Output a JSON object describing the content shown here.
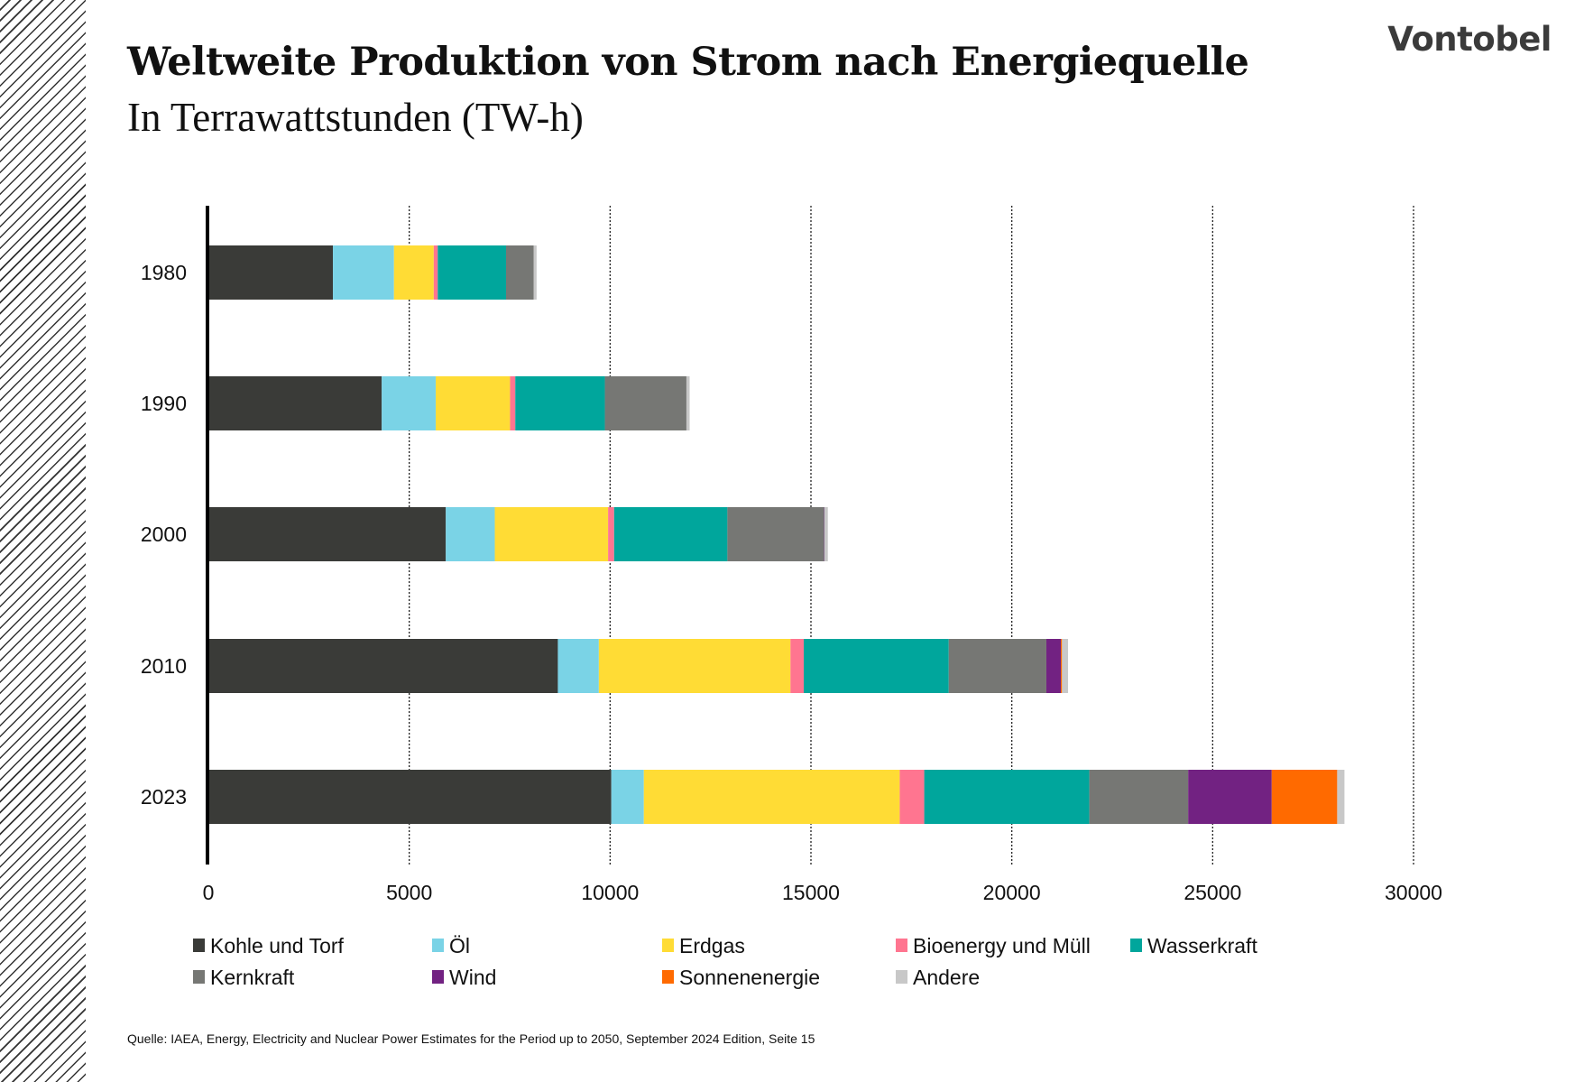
{
  "header": {
    "title": "Weltweite Produktion von Strom nach Energiequelle",
    "subtitle": "In Terrawattstunden (TW-h)",
    "logo": "Vontobel"
  },
  "chart_data": {
    "type": "bar",
    "orientation": "horizontal",
    "stacked": true,
    "title": "Weltweite Produktion von Strom nach Energiequelle",
    "subtitle": "In Terrawattstunden (TW-h)",
    "categories": [
      "1980",
      "1990",
      "2000",
      "2010",
      "2023"
    ],
    "xlim": [
      0,
      30000
    ],
    "xticks": [
      "0",
      "5000",
      "10000",
      "15000",
      "20000",
      "25000",
      "30000"
    ],
    "grid": "vertical dotted",
    "legend_position": "bottom",
    "series": [
      {
        "name": "Kohle und Torf",
        "color": "#3a3b38",
        "values": [
          3100,
          4315,
          5910,
          8700,
          10030
        ]
      },
      {
        "name": "Öl",
        "color": "#7ad3e6",
        "values": [
          1520,
          1345,
          1220,
          1020,
          810
        ]
      },
      {
        "name": "Erdgas",
        "color": "#ffdc35",
        "values": [
          990,
          1850,
          2820,
          4770,
          6370
        ]
      },
      {
        "name": "Bioenergy und Müll",
        "color": "#ff7590",
        "values": [
          100,
          130,
          150,
          330,
          610
        ]
      },
      {
        "name": "Wasserkraft",
        "color": "#00a69c",
        "values": [
          1700,
          2230,
          2820,
          3610,
          4110
        ]
      },
      {
        "name": "Kernkraft",
        "color": "#767774",
        "values": [
          690,
          2030,
          2410,
          2430,
          2460
        ]
      },
      {
        "name": "Wind",
        "color": "#722282",
        "values": [
          0,
          0,
          10,
          360,
          2080
        ]
      },
      {
        "name": "Sonnenenergie",
        "color": "#ff6a00",
        "values": [
          0,
          0,
          0,
          30,
          1630
        ]
      },
      {
        "name": "Andere",
        "color": "#c8c8c8",
        "values": [
          70,
          80,
          80,
          150,
          180
        ]
      }
    ]
  },
  "footer": {
    "source": "Quelle: IAEA, Energy, Electricity and Nuclear Power Estimates for the Period up to 2050, September 2024 Edition, Seite 15"
  }
}
